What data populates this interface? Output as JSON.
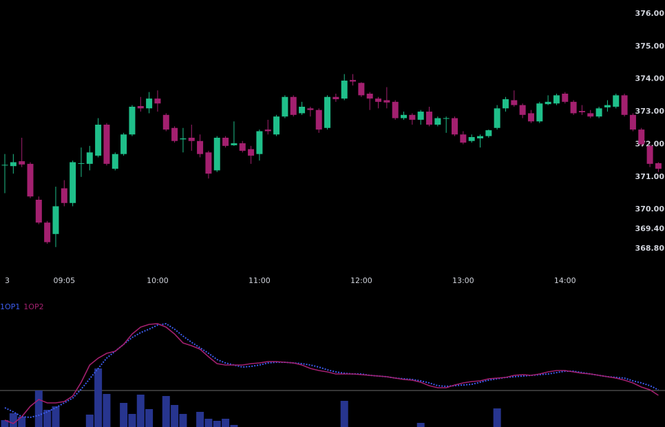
{
  "chart_data": [
    {
      "type": "candlestick",
      "categories": [
        "3",
        null,
        null,
        null,
        null,
        null,
        null,
        "09:05",
        null,
        null,
        null,
        null,
        null,
        null,
        null,
        null,
        null,
        null,
        "10:00",
        null,
        null,
        null,
        null,
        null,
        null,
        null,
        null,
        null,
        null,
        null,
        "11:00",
        null,
        null,
        null,
        null,
        null,
        null,
        null,
        null,
        null,
        null,
        null,
        "12:00",
        null,
        null,
        null,
        null,
        null,
        null,
        null,
        null,
        null,
        null,
        null,
        "13:00",
        null,
        null,
        null,
        null,
        null,
        null,
        null,
        null,
        null,
        null,
        null,
        "14:00",
        null,
        null,
        null,
        null,
        null,
        null,
        null,
        null,
        null,
        null,
        null
      ],
      "open": [
        371.35,
        371.33,
        371.48,
        371.4,
        370.3,
        369.6,
        369.25,
        370.65,
        370.2,
        371.4,
        371.4,
        371.65,
        372.6,
        371.25,
        371.7,
        372.3,
        373.17,
        373.1,
        373.4,
        372.9,
        372.5,
        372.15,
        372.2,
        372.1,
        371.75,
        371.2,
        372.2,
        371.97,
        372.03,
        371.85,
        371.7,
        372.45,
        372.3,
        372.85,
        373.45,
        372.95,
        373.1,
        373.05,
        372.5,
        373.45,
        373.4,
        373.97,
        373.88,
        373.55,
        373.4,
        373.35,
        373.3,
        372.8,
        372.9,
        372.75,
        373.0,
        372.6,
        372.78,
        372.8,
        372.3,
        372.1,
        372.18,
        372.25,
        372.5,
        373.1,
        373.35,
        373.2,
        372.95,
        372.7,
        373.23,
        373.25,
        373.55,
        373.3,
        373.02,
        372.95,
        372.85,
        373.13,
        373.15,
        373.5,
        372.9,
        372.45,
        371.95,
        371.42
      ],
      "close": [
        371.37,
        371.45,
        371.38,
        370.4,
        369.6,
        369.0,
        370.1,
        370.2,
        371.45,
        371.42,
        371.75,
        372.6,
        371.4,
        371.7,
        372.3,
        373.15,
        373.1,
        373.4,
        373.25,
        372.45,
        372.1,
        372.18,
        372.1,
        371.7,
        371.1,
        372.2,
        371.95,
        372.03,
        371.8,
        371.65,
        372.4,
        372.4,
        372.85,
        373.45,
        372.9,
        373.15,
        373.05,
        372.45,
        373.45,
        373.38,
        373.95,
        373.92,
        373.5,
        373.4,
        373.3,
        373.28,
        372.8,
        372.9,
        372.75,
        373.0,
        372.6,
        372.8,
        372.8,
        372.3,
        372.05,
        372.22,
        372.25,
        372.43,
        373.1,
        373.38,
        373.2,
        372.9,
        372.7,
        373.25,
        373.3,
        373.5,
        373.3,
        372.95,
        372.98,
        372.85,
        373.1,
        373.2,
        373.5,
        372.9,
        372.45,
        372.0,
        371.4,
        371.25
      ],
      "high": [
        371.7,
        371.7,
        372.2,
        371.45,
        370.4,
        369.65,
        370.7,
        370.9,
        371.5,
        371.9,
        371.95,
        372.8,
        372.65,
        371.75,
        372.35,
        373.2,
        373.45,
        373.6,
        373.65,
        372.95,
        372.55,
        372.5,
        372.6,
        372.3,
        371.8,
        372.25,
        372.25,
        372.7,
        372.1,
        371.95,
        372.45,
        372.75,
        372.9,
        373.5,
        373.5,
        373.3,
        373.15,
        373.1,
        373.5,
        373.55,
        374.15,
        374.15,
        373.9,
        373.6,
        373.45,
        373.75,
        373.35,
        373.0,
        372.95,
        373.05,
        373.15,
        372.85,
        372.85,
        372.85,
        372.4,
        372.3,
        372.3,
        372.45,
        373.2,
        373.45,
        373.65,
        373.25,
        373.05,
        373.3,
        373.5,
        373.55,
        373.6,
        373.35,
        373.2,
        373.05,
        373.15,
        373.35,
        373.55,
        373.55,
        372.95,
        372.5,
        372.0,
        371.45
      ],
      "low": [
        370.5,
        371.1,
        371.3,
        370.35,
        369.55,
        368.95,
        368.85,
        370.1,
        370.1,
        371.0,
        371.2,
        371.6,
        371.35,
        371.2,
        371.65,
        372.25,
        373.0,
        372.95,
        373.0,
        372.4,
        372.05,
        371.75,
        371.8,
        371.6,
        370.95,
        371.15,
        371.9,
        371.95,
        371.75,
        371.4,
        371.5,
        372.3,
        372.25,
        372.8,
        372.85,
        372.9,
        372.85,
        372.35,
        372.45,
        373.3,
        373.35,
        373.8,
        373.45,
        373.05,
        373.1,
        373.1,
        372.75,
        372.75,
        372.6,
        372.6,
        372.55,
        372.55,
        372.35,
        372.25,
        372.0,
        372.05,
        371.9,
        372.2,
        372.45,
        373.0,
        373.15,
        372.8,
        372.65,
        372.65,
        373.2,
        373.2,
        373.25,
        372.9,
        372.9,
        372.8,
        372.8,
        373.0,
        373.1,
        372.85,
        372.4,
        371.95,
        371.3,
        371.15
      ],
      "up_color": "#1fbf8a",
      "down_color": "#a3206f",
      "ylim": [
        368.19,
        376.42
      ],
      "yticks": [
        {
          "value": 376,
          "label": "376.00"
        },
        {
          "value": 375,
          "label": "375.00"
        },
        {
          "value": 374,
          "label": "374.00"
        },
        {
          "value": 373,
          "label": "373.00"
        },
        {
          "value": 372,
          "label": "372.00"
        },
        {
          "value": 371,
          "label": "371.00"
        },
        {
          "value": 370,
          "label": "370.00"
        },
        {
          "value": 369.4,
          "label": "369.40"
        },
        {
          "value": 368.8,
          "label": "368.80"
        }
      ]
    },
    {
      "type": "indicator",
      "series": [
        {
          "name": "1OP1",
          "color": "#3d5df0",
          "dashed": true,
          "values": [
            28,
            22,
            15,
            14,
            17,
            22,
            28,
            35,
            42,
            55,
            70,
            85,
            100,
            110,
            120,
            130,
            137,
            142,
            148,
            150,
            142,
            132,
            123,
            115,
            107,
            98,
            93,
            90,
            87,
            88,
            90,
            93,
            94,
            94,
            93,
            92,
            90,
            87,
            83,
            80,
            78,
            77,
            77,
            75,
            74,
            73,
            71,
            70,
            69,
            67,
            64,
            60,
            59,
            60,
            61,
            62,
            65,
            68,
            70,
            72,
            73,
            74,
            75,
            76,
            77,
            79,
            81,
            81,
            79,
            77,
            75,
            73,
            72,
            71,
            67,
            64,
            60,
            54
          ]
        },
        {
          "name": "1OP2",
          "color": "#a3206f",
          "dashed": false,
          "values": [
            10,
            5,
            15,
            30,
            40,
            35,
            35,
            37,
            45,
            65,
            90,
            100,
            107,
            110,
            120,
            135,
            145,
            149,
            150,
            145,
            135,
            122,
            118,
            113,
            102,
            92,
            90,
            90,
            90,
            92,
            93,
            95,
            95,
            94,
            93,
            90,
            85,
            82,
            80,
            77,
            77,
            77,
            76,
            75,
            74,
            73,
            71,
            69,
            68,
            65,
            60,
            57,
            57,
            61,
            64,
            66,
            67,
            70,
            71,
            72,
            75,
            76,
            75,
            77,
            80,
            82,
            82,
            80,
            78,
            77,
            75,
            73,
            71,
            68,
            64,
            58,
            54,
            46
          ]
        }
      ],
      "bars": {
        "color": "#27358f",
        "values": [
          10,
          20,
          15,
          0,
          53,
          25,
          30,
          0,
          0,
          0,
          18,
          85,
          48,
          0,
          35,
          19,
          47,
          26,
          0,
          45,
          32,
          19,
          0,
          22,
          12,
          9,
          12,
          3,
          0,
          0,
          0,
          0,
          0,
          0,
          0,
          0,
          0,
          0,
          0,
          0,
          38,
          0,
          0,
          0,
          0,
          0,
          0,
          0,
          0,
          6,
          0,
          0,
          0,
          0,
          0,
          0,
          0,
          0,
          27,
          0,
          0,
          0,
          0,
          0,
          0,
          0,
          0,
          0,
          0,
          0,
          0,
          0,
          0,
          0,
          0,
          0,
          0,
          0
        ]
      },
      "hline": 53,
      "ylim": [
        0,
        180
      ]
    }
  ]
}
